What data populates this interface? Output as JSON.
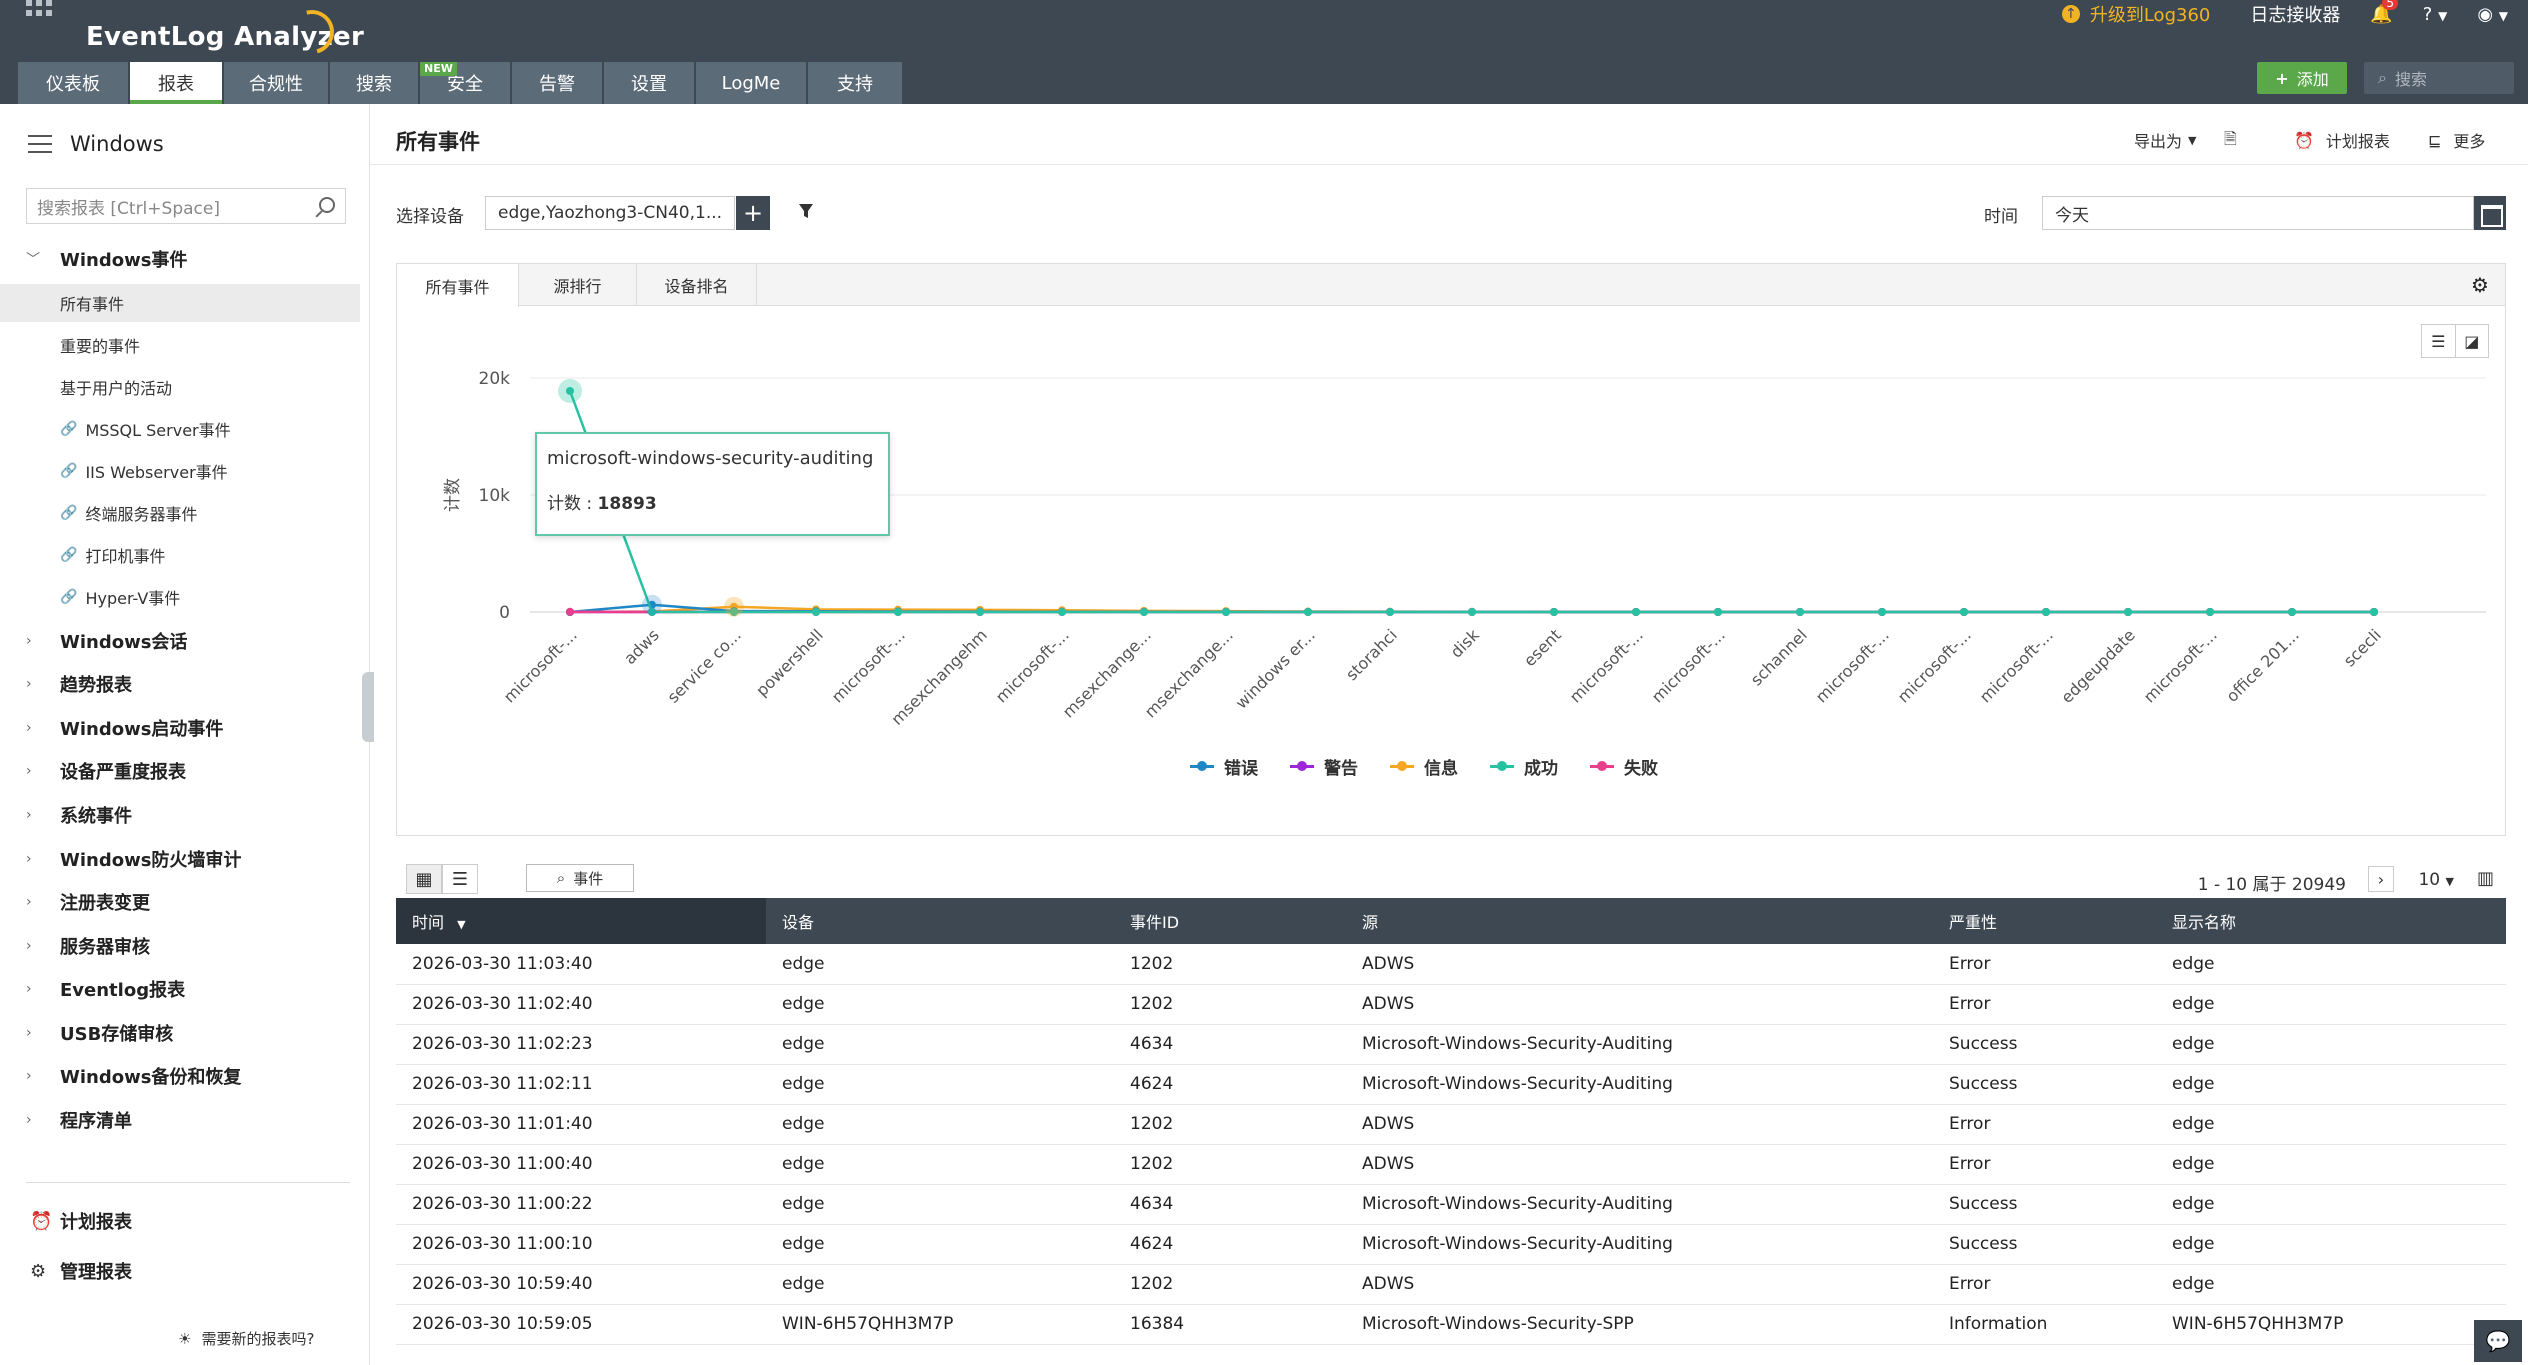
{
  "header": {
    "logo": "EventLog Analyzer",
    "upgrade_label": "升级到Log360",
    "log_receiver": "日志接收器",
    "notification_count": "5",
    "help_label": "?",
    "tabs": [
      {
        "label": "仪表板"
      },
      {
        "label": "报表"
      },
      {
        "label": "合规性"
      },
      {
        "label": "搜索"
      },
      {
        "label": "安全",
        "tag": "NEW"
      },
      {
        "label": "告警"
      },
      {
        "label": "设置"
      },
      {
        "label": "LogMe"
      },
      {
        "label": "支持"
      }
    ],
    "add_label": "添加",
    "search_placeholder": "搜索"
  },
  "sidebar": {
    "title": "Windows",
    "search_placeholder": "搜索报表 [Ctrl+Space]",
    "expanded_group": "Windows事件",
    "items": [
      {
        "label": "所有事件",
        "link": false
      },
      {
        "label": "重要的事件",
        "link": false
      },
      {
        "label": "基于用户的活动",
        "link": false
      },
      {
        "label": "MSSQL Server事件",
        "link": true
      },
      {
        "label": "IIS Webserver事件",
        "link": true
      },
      {
        "label": "终端服务器事件",
        "link": true
      },
      {
        "label": "打印机事件",
        "link": true
      },
      {
        "label": "Hyper-V事件",
        "link": true
      }
    ],
    "groups": [
      "Windows会话",
      "趋势报表",
      "Windows启动事件",
      "设备严重度报表",
      "系统事件",
      "Windows防火墙审计",
      "注册表变更",
      "服务器审核",
      "Eventlog报表",
      "USB存储审核",
      "Windows备份和恢复",
      "程序清单"
    ],
    "bottom": [
      "计划报表",
      "管理报表"
    ],
    "need_new": "需要新的报表吗?"
  },
  "main": {
    "title": "所有事件",
    "export_label": "导出为",
    "schedule_label": "计划报表",
    "more_label": "更多",
    "select_device_label": "选择设备",
    "device_value": "edge,Yaozhong3-CN40,1...",
    "time_label": "时间",
    "time_value": "今天",
    "chart_tabs": [
      "所有事件",
      "源排行",
      "设备排名"
    ],
    "tooltip": {
      "source": "microsoft-windows-security-auditing",
      "count_label": "计数 : ",
      "count": "18893"
    }
  },
  "chart_data": {
    "type": "line",
    "ylabel": "计数",
    "yticks": [
      "20k",
      "10k",
      "0"
    ],
    "ylim": [
      0,
      20000
    ],
    "categories": [
      "microsoft-...",
      "adws",
      "service co...",
      "powershell",
      "microsoft-...",
      "msexchangehm",
      "microsoft-...",
      "msexchange...",
      "msexchange...",
      "windows er...",
      "storahci",
      "disk",
      "esent",
      "microsoft-...",
      "microsoft-...",
      "schannel",
      "microsoft-...",
      "microsoft-...",
      "microsoft-...",
      "edgeupdate",
      "microsoft-...",
      "office 201...",
      "scecli"
    ],
    "series": [
      {
        "name": "错误",
        "color": "#1e88c7",
        "values": [
          0,
          620,
          80,
          60,
          40,
          30,
          20,
          15,
          10,
          10,
          8,
          6,
          5,
          4,
          3,
          3,
          2,
          2,
          2,
          1,
          1,
          1,
          1
        ]
      },
      {
        "name": "警告",
        "color": "#9c27d6",
        "values": [
          0,
          0,
          30,
          20,
          15,
          10,
          8,
          6,
          5,
          4,
          3,
          2,
          2,
          1,
          1,
          1,
          1,
          0,
          0,
          0,
          0,
          0,
          0
        ]
      },
      {
        "name": "信息",
        "color": "#f5a623",
        "values": [
          0,
          40,
          450,
          220,
          200,
          180,
          150,
          100,
          80,
          40,
          30,
          20,
          15,
          10,
          8,
          6,
          5,
          4,
          3,
          2,
          2,
          1,
          1
        ]
      },
      {
        "name": "成功",
        "color": "#26c2a2",
        "values": [
          18893,
          0,
          0,
          0,
          0,
          0,
          0,
          0,
          0,
          0,
          0,
          0,
          0,
          0,
          0,
          0,
          0,
          0,
          0,
          0,
          0,
          0,
          0
        ]
      },
      {
        "name": "失败",
        "color": "#e83e8c",
        "values": [
          20,
          0,
          0,
          0,
          0,
          0,
          0,
          0,
          0,
          0,
          0,
          0,
          0,
          0,
          0,
          0,
          0,
          0,
          0,
          0,
          0,
          0,
          0
        ]
      }
    ]
  },
  "table": {
    "event_button": "事件",
    "pager": "1 - 10 属于 20949",
    "page_size": "10",
    "columns": [
      "时间",
      "设备",
      "事件ID",
      "源",
      "严重性",
      "显示名称"
    ],
    "rows": [
      [
        "2026-03-30 11:03:40",
        "edge",
        "1202",
        "ADWS",
        "Error",
        "edge"
      ],
      [
        "2026-03-30 11:02:40",
        "edge",
        "1202",
        "ADWS",
        "Error",
        "edge"
      ],
      [
        "2026-03-30 11:02:23",
        "edge",
        "4634",
        "Microsoft-Windows-Security-Auditing",
        "Success",
        "edge"
      ],
      [
        "2026-03-30 11:02:11",
        "edge",
        "4624",
        "Microsoft-Windows-Security-Auditing",
        "Success",
        "edge"
      ],
      [
        "2026-03-30 11:01:40",
        "edge",
        "1202",
        "ADWS",
        "Error",
        "edge"
      ],
      [
        "2026-03-30 11:00:40",
        "edge",
        "1202",
        "ADWS",
        "Error",
        "edge"
      ],
      [
        "2026-03-30 11:00:22",
        "edge",
        "4634",
        "Microsoft-Windows-Security-Auditing",
        "Success",
        "edge"
      ],
      [
        "2026-03-30 11:00:10",
        "edge",
        "4624",
        "Microsoft-Windows-Security-Auditing",
        "Success",
        "edge"
      ],
      [
        "2026-03-30 10:59:40",
        "edge",
        "1202",
        "ADWS",
        "Error",
        "edge"
      ],
      [
        "2026-03-30 10:59:05",
        "WIN-6H57QHH3M7P",
        "16384",
        "Microsoft-Windows-Security-SPP",
        "Information",
        "WIN-6H57QHH3M7P"
      ]
    ]
  }
}
